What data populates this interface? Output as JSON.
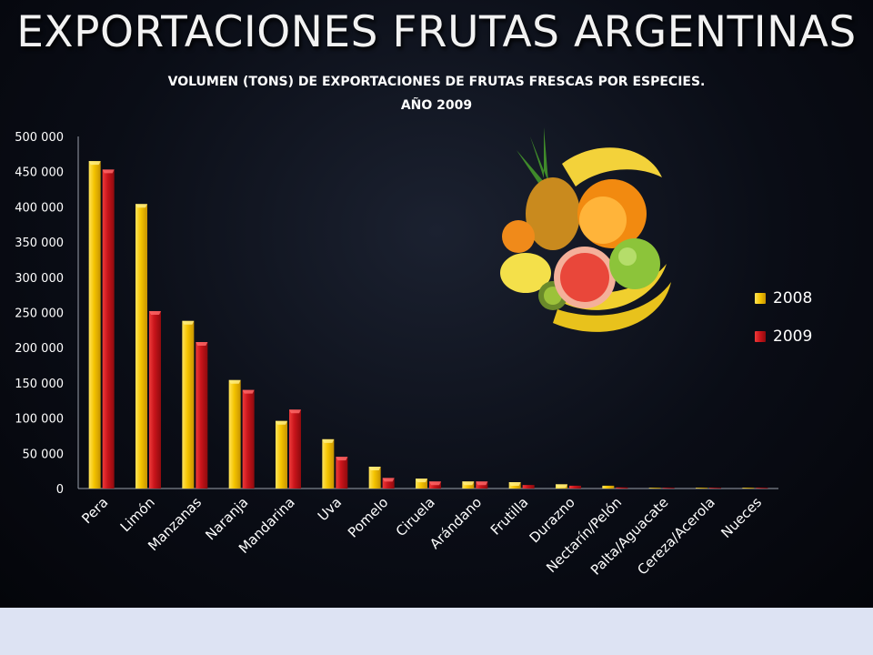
{
  "header": {
    "title": "EXPORTACIONES FRUTAS ARGENTINAS"
  },
  "colors": {
    "series_2008": "#f5c400",
    "series_2009": "#c8141a",
    "text": "#ffffff"
  },
  "decor": {
    "fruit_image_icon": "fruit-collage-icon"
  },
  "chart_data": {
    "type": "bar",
    "title": "VOLUMEN (TONS) DE EXPORTACIONES DE FRUTAS FRESCAS POR ESPECIES.",
    "subtitle": "AÑO 2009",
    "xlabel": "",
    "ylabel": "",
    "ylim": [
      0,
      500000
    ],
    "ytick_labels": [
      "0",
      "50 000",
      "100 000",
      "150 000",
      "200 000",
      "250 000",
      "300 000",
      "350 000",
      "400 000",
      "450 000",
      "500 000"
    ],
    "ytick_values": [
      0,
      50000,
      100000,
      150000,
      200000,
      250000,
      300000,
      350000,
      400000,
      450000,
      500000
    ],
    "grid": false,
    "legend_position": "right",
    "categories": [
      "Pera",
      "Limón",
      "Manzanas",
      "Naranja",
      "Mandarina",
      "Uva",
      "Pomelo",
      "Ciruela",
      "Arándano",
      "Frutilla",
      "Durazno",
      "Nectarín/Pelón",
      "Palta/Aguacate",
      "Cereza/Acerola",
      "Nueces"
    ],
    "series": [
      {
        "name": "2008",
        "values": [
          465000,
          404000,
          238000,
          154000,
          96000,
          70000,
          31000,
          14000,
          10000,
          9000,
          6000,
          4000,
          800,
          400,
          300
        ]
      },
      {
        "name": "2009",
        "values": [
          453000,
          252000,
          208000,
          140000,
          112000,
          45000,
          15000,
          10000,
          10000,
          5000,
          4000,
          1500,
          800,
          500,
          300
        ]
      }
    ]
  }
}
